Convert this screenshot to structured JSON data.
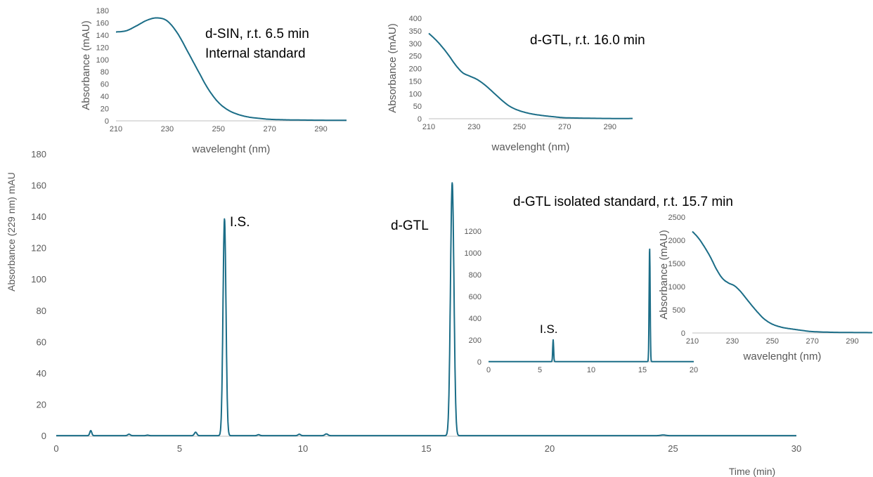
{
  "chart_data": [
    {
      "id": "main",
      "type": "line",
      "title": "",
      "xlabel": "Time (min)",
      "ylabel": "Absorbance (229 nm) mAU",
      "xlim": [
        0,
        30
      ],
      "ylim": [
        0,
        180
      ],
      "xticks": [
        0,
        5,
        10,
        15,
        20,
        25,
        30
      ],
      "yticks": [
        0,
        20,
        40,
        60,
        80,
        100,
        120,
        140,
        160,
        180
      ],
      "grid": false,
      "color": "#1b6d87",
      "baseline": 0.4,
      "peaks": [
        {
          "x": 1.4,
          "height": 3.2,
          "sigma": 0.04
        },
        {
          "x": 2.95,
          "height": 0.9,
          "sigma": 0.05
        },
        {
          "x": 3.7,
          "height": 0.3,
          "sigma": 0.05
        },
        {
          "x": 5.65,
          "height": 2.2,
          "sigma": 0.05
        },
        {
          "x": 6.82,
          "height": 138.5,
          "sigma": 0.06
        },
        {
          "x": 8.2,
          "height": 0.6,
          "sigma": 0.05
        },
        {
          "x": 9.85,
          "height": 0.9,
          "sigma": 0.05
        },
        {
          "x": 10.95,
          "height": 1.1,
          "sigma": 0.06
        },
        {
          "x": 16.05,
          "height": 161.5,
          "sigma": 0.07
        },
        {
          "x": 24.6,
          "height": 0.4,
          "sigma": 0.1
        }
      ],
      "annotations": [
        {
          "id": "is",
          "text": "I.S."
        },
        {
          "id": "dgtl",
          "text": "d-GTL"
        }
      ]
    },
    {
      "id": "sin_spectrum",
      "type": "line",
      "title": "d-SIN, r.t. 6.5 min",
      "subtitle": "Internal standard",
      "xlabel": "wavelenght (nm)",
      "ylabel": "Absorbance (mAU)",
      "xlim": [
        210,
        300
      ],
      "ylim": [
        0,
        180
      ],
      "xticks": [
        210,
        230,
        250,
        270,
        290
      ],
      "yticks": [
        0,
        20,
        40,
        60,
        80,
        100,
        120,
        140,
        160,
        180
      ],
      "x": [
        210,
        214,
        218,
        222,
        226,
        230,
        234,
        238,
        242,
        246,
        250,
        254,
        258,
        262,
        266,
        270,
        275,
        280,
        290,
        300
      ],
      "y": [
        145,
        147,
        155,
        164,
        168,
        163,
        143,
        113,
        82,
        52,
        30,
        17,
        10,
        6,
        4,
        2.5,
        1.8,
        1.4,
        1,
        0.8
      ]
    },
    {
      "id": "gtl_spectrum",
      "type": "line",
      "title": "d-GTL, r.t. 16.0 min",
      "xlabel": "wavelenght (nm)",
      "ylabel": "Absorbance (mAU)",
      "xlim": [
        210,
        300
      ],
      "ylim": [
        0,
        400
      ],
      "xticks": [
        210,
        230,
        250,
        270,
        290
      ],
      "yticks": [
        0,
        50,
        100,
        150,
        200,
        250,
        300,
        350,
        400
      ],
      "x": [
        210,
        213,
        216,
        219,
        222,
        225,
        228,
        231,
        234,
        237,
        240,
        243,
        246,
        250,
        255,
        260,
        265,
        270,
        280,
        290,
        300
      ],
      "y": [
        340,
        315,
        285,
        250,
        212,
        183,
        170,
        158,
        140,
        117,
        92,
        68,
        48,
        32,
        20,
        13,
        8,
        4,
        2,
        1,
        1
      ]
    },
    {
      "id": "isolated_chromatogram",
      "type": "line",
      "title": "d-GTL isolated standard, r.t. 15.7 min",
      "xlabel": "",
      "ylabel": "",
      "xlim": [
        0,
        20
      ],
      "ylim": [
        0,
        1200
      ],
      "xticks": [
        0,
        5,
        10,
        15,
        20
      ],
      "yticks": [
        0,
        200,
        400,
        600,
        800,
        1000,
        1200
      ],
      "baseline": 2,
      "peaks": [
        {
          "x": 6.3,
          "height": 200,
          "sigma": 0.045
        },
        {
          "x": 15.7,
          "height": 1045,
          "sigma": 0.05
        }
      ],
      "annotations": [
        {
          "id": "is",
          "text": "I.S."
        }
      ]
    },
    {
      "id": "isolated_spectrum",
      "type": "line",
      "title": "",
      "xlabel": "wavelenght (nm)",
      "ylabel": "Absorbance (mAU)",
      "xlim": [
        210,
        300
      ],
      "ylim": [
        0,
        2500
      ],
      "xticks": [
        210,
        230,
        250,
        270,
        290
      ],
      "yticks": [
        0,
        500,
        1000,
        1500,
        2000,
        2500
      ],
      "x": [
        210,
        213,
        216,
        219,
        222,
        225,
        228,
        231,
        234,
        237,
        240,
        243,
        246,
        250,
        255,
        260,
        265,
        270,
        280,
        290,
        300
      ],
      "y": [
        2190,
        2050,
        1860,
        1640,
        1380,
        1180,
        1080,
        1020,
        900,
        740,
        580,
        430,
        300,
        190,
        120,
        85,
        55,
        30,
        15,
        10,
        8
      ]
    }
  ]
}
